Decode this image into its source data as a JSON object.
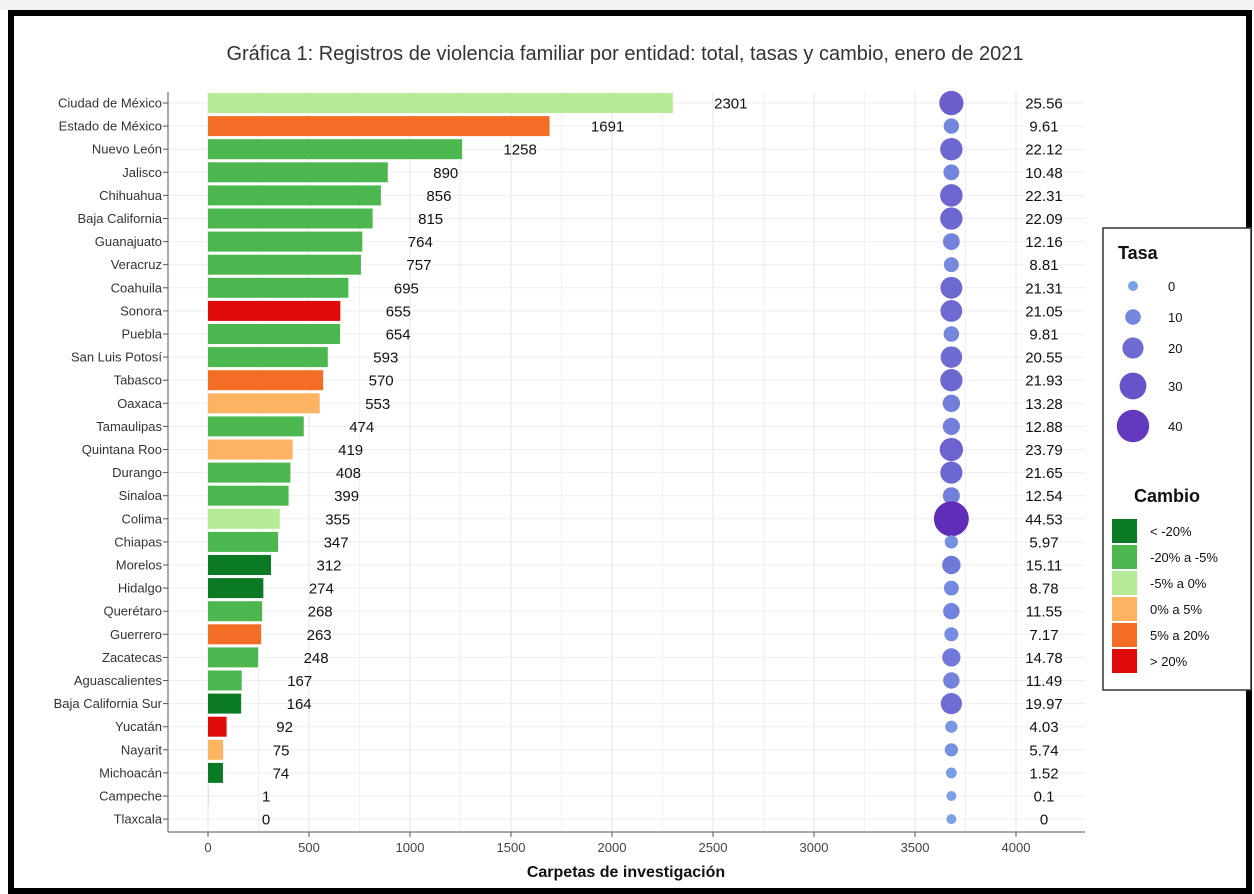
{
  "chart_data": {
    "type": "bar",
    "title": "Gráfica 1: Registros de violencia familiar por entidad: total, tasas y cambio, enero de 2021",
    "xlabel": "Carpetas de investigación",
    "ylabel": "",
    "xlim": [
      0,
      4000
    ],
    "x_ticks": [
      "0",
      "500",
      "1000",
      "1500",
      "2000",
      "2500",
      "3000",
      "3500",
      "4000"
    ],
    "grid": true,
    "categories": [
      "Ciudad de México",
      "Estado de México",
      "Nuevo León",
      "Jalisco",
      "Chihuahua",
      "Baja California",
      "Guanajuato",
      "Veracruz",
      "Coahuila",
      "Sonora",
      "Puebla",
      "San Luis Potosí",
      "Tabasco",
      "Oaxaca",
      "Tamaulipas",
      "Quintana Roo",
      "Durango",
      "Sinaloa",
      "Colima",
      "Chiapas",
      "Morelos",
      "Hidalgo",
      "Querétaro",
      "Guerrero",
      "Zacatecas",
      "Aguascalientes",
      "Baja California Sur",
      "Yucatán",
      "Nayarit",
      "Michoacán",
      "Campeche",
      "Tlaxcala"
    ],
    "values": [
      2301,
      1691,
      1258,
      890,
      856,
      815,
      764,
      757,
      695,
      655,
      654,
      593,
      570,
      553,
      474,
      419,
      408,
      399,
      355,
      347,
      312,
      274,
      268,
      263,
      248,
      167,
      164,
      92,
      75,
      74,
      1,
      0
    ],
    "value_labels": [
      "2301",
      "1691",
      "1258",
      "890",
      "856",
      "815",
      "764",
      "757",
      "695",
      "655",
      "654",
      "593",
      "570",
      "553",
      "474",
      "419",
      "408",
      "399",
      "355",
      "347",
      "312",
      "274",
      "268",
      "263",
      "248",
      "167",
      "164",
      "92",
      "75",
      "74",
      "1",
      "0"
    ],
    "rates": [
      25.56,
      9.61,
      22.12,
      10.48,
      22.31,
      22.09,
      12.16,
      8.81,
      21.31,
      21.05,
      9.81,
      20.55,
      21.93,
      13.28,
      12.88,
      23.79,
      21.65,
      12.54,
      44.53,
      5.97,
      15.11,
      8.78,
      11.55,
      7.17,
      14.78,
      11.49,
      19.97,
      4.03,
      5.74,
      1.52,
      0.1,
      0
    ],
    "rate_labels": [
      "25.56",
      "9.61",
      "22.12",
      "10.48",
      "22.31",
      "22.09",
      "12.16",
      "8.81",
      "21.31",
      "21.05",
      "9.81",
      "20.55",
      "21.93",
      "13.28",
      "12.88",
      "23.79",
      "21.65",
      "12.54",
      "44.53",
      "5.97",
      "15.11",
      "8.78",
      "11.55",
      "7.17",
      "14.78",
      "11.49",
      "19.97",
      "4.03",
      "5.74",
      "1.52",
      "0.1",
      "0"
    ],
    "rate_marker_x": 3680,
    "change_class": [
      2,
      4,
      1,
      1,
      1,
      1,
      1,
      1,
      1,
      5,
      1,
      1,
      4,
      3,
      1,
      3,
      1,
      1,
      2,
      1,
      0,
      0,
      1,
      4,
      1,
      1,
      0,
      5,
      3,
      0,
      1,
      1
    ],
    "change_colors": [
      "#0b7a24",
      "#4db74f",
      "#b5eb96",
      "#fdb462",
      "#f46d25",
      "#e00a0a"
    ],
    "legend": {
      "placement": "right",
      "tasa_title": "Tasa",
      "tasa_items": [
        {
          "label": "0",
          "value": 0
        },
        {
          "label": "10",
          "value": 10
        },
        {
          "label": "20",
          "value": 20
        },
        {
          "label": "30",
          "value": 30
        },
        {
          "label": "40",
          "value": 40
        }
      ],
      "cambio_title": "Cambio",
      "cambio_items": [
        "< -20%",
        "-20% a -5%",
        "-5% a 0%",
        "0% a 5%",
        "5% a 20%",
        "> 20%"
      ]
    }
  }
}
